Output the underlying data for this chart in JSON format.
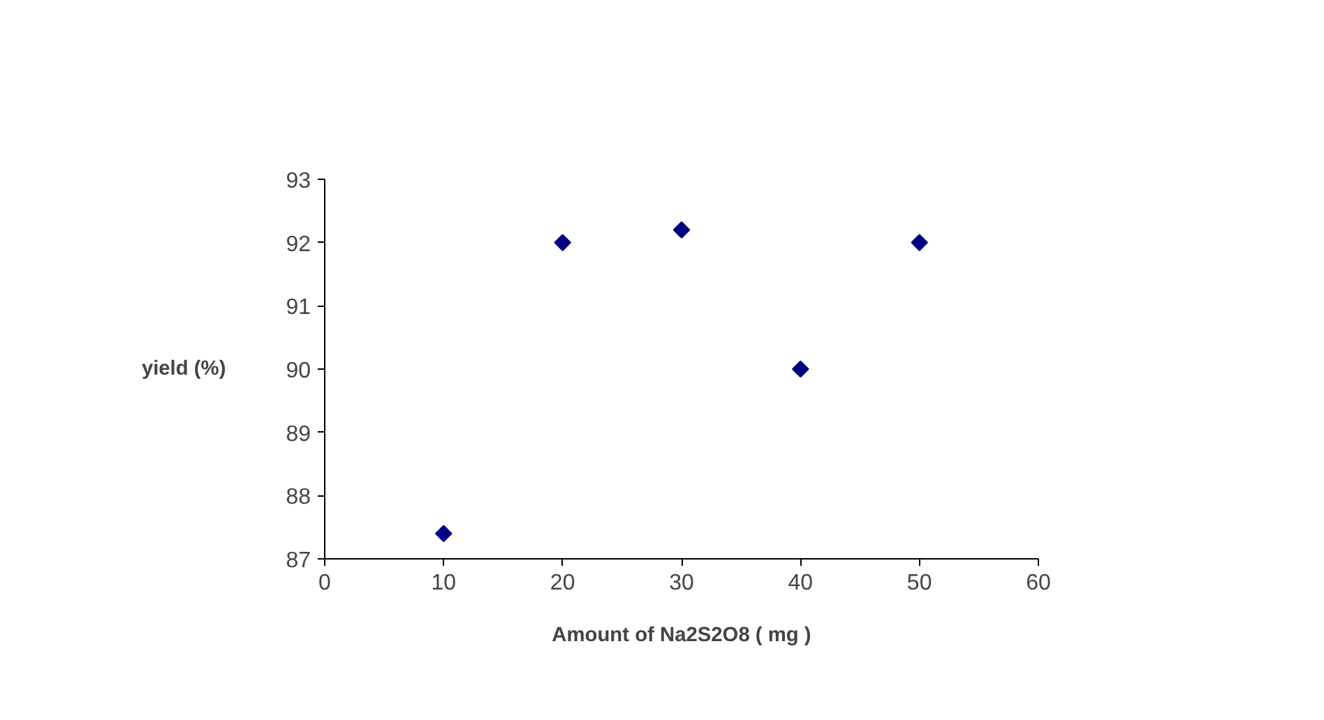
{
  "chart_data": {
    "type": "scatter",
    "xlabel": "Amount of Na2S2O8 ( mg )",
    "ylabel": "yield (%)",
    "x": [
      10,
      20,
      30,
      40,
      50
    ],
    "series": [
      {
        "color": "#000080",
        "values": [
          87.4,
          92.0,
          92.2,
          90.0,
          92.0
        ]
      }
    ],
    "xlim": [
      0,
      60
    ],
    "xticks": [
      0,
      10,
      20,
      30,
      40,
      50,
      60
    ],
    "ylim": [
      87,
      93
    ],
    "yticks": [
      87,
      88,
      89,
      90,
      91,
      92,
      93
    ],
    "grid": false,
    "marker": "diamond"
  }
}
